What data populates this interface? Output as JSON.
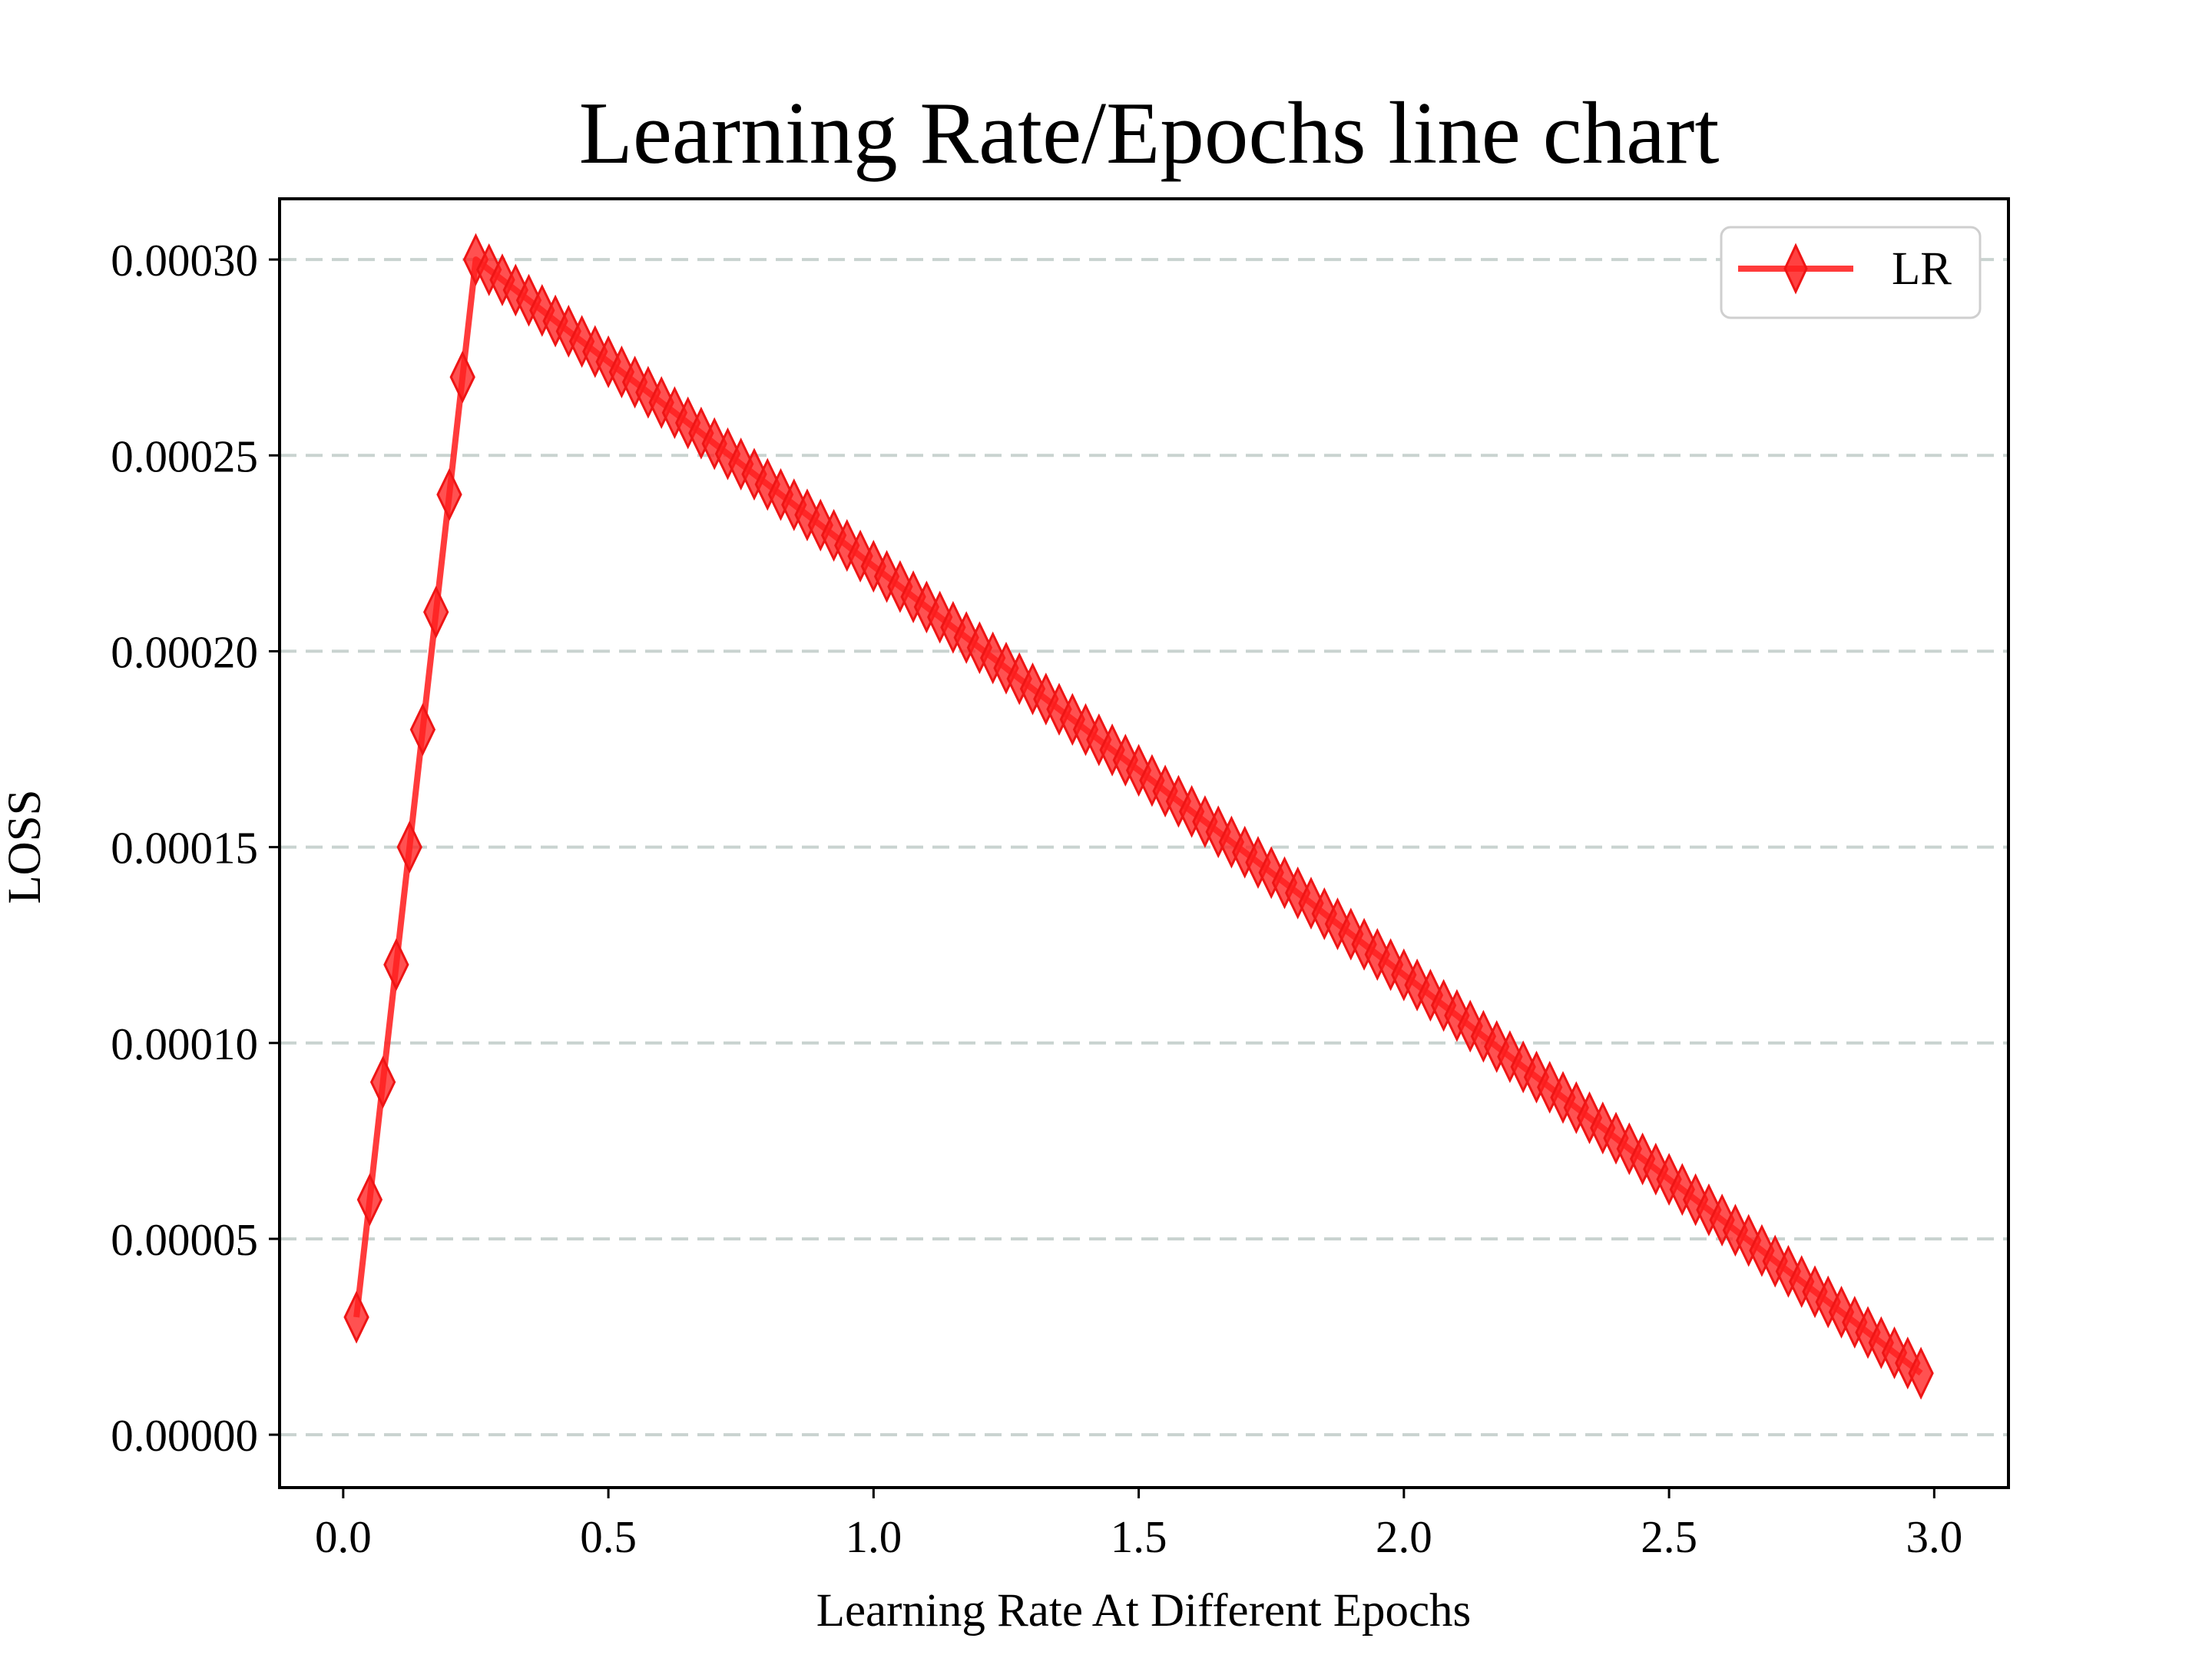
{
  "chart_data": {
    "type": "line",
    "title": "Learning Rate/Epochs line chart",
    "xlabel": "Learning Rate At Different Epochs",
    "ylabel": "LOSS",
    "xlim": [
      -0.12,
      3.14
    ],
    "ylim": [
      -1.35e-05,
      0.0003155
    ],
    "x_ticks": [
      0.0,
      0.5,
      1.0,
      1.5,
      2.0,
      2.5,
      3.0
    ],
    "x_tick_labels": [
      "0.0",
      "0.5",
      "1.0",
      "1.5",
      "2.0",
      "2.5",
      "3.0"
    ],
    "y_ticks": [
      0.0,
      5e-05,
      0.0001,
      0.00015,
      0.0002,
      0.00025,
      0.0003
    ],
    "y_tick_labels": [
      "0.00000",
      "0.00005",
      "0.00010",
      "0.00015",
      "0.00020",
      "0.00025",
      "0.00030"
    ],
    "grid": "horizontal dashed",
    "legend_position": "top-right",
    "colors": {
      "line": "#ff2020",
      "grid": "#c9d3d0",
      "axis": "#000000"
    },
    "series": [
      {
        "name": "LR",
        "marker": "thin-diamond",
        "x": [
          0.025,
          0.05,
          0.075,
          0.1,
          0.125,
          0.15,
          0.175,
          0.2,
          0.225,
          0.25,
          0.275,
          0.3,
          0.325,
          0.35,
          0.375,
          0.4,
          0.425,
          0.45,
          0.475,
          0.5,
          0.525,
          0.55,
          0.575,
          0.6,
          0.625,
          0.65,
          0.675,
          0.7,
          0.725,
          0.75,
          0.775,
          0.8,
          0.825,
          0.85,
          0.875,
          0.9,
          0.925,
          0.95,
          0.975,
          1.0,
          1.025,
          1.05,
          1.075,
          1.1,
          1.125,
          1.15,
          1.175,
          1.2,
          1.225,
          1.25,
          1.275,
          1.3,
          1.325,
          1.35,
          1.375,
          1.4,
          1.425,
          1.45,
          1.475,
          1.5,
          1.525,
          1.55,
          1.575,
          1.6,
          1.625,
          1.65,
          1.675,
          1.7,
          1.725,
          1.75,
          1.775,
          1.8,
          1.825,
          1.85,
          1.875,
          1.9,
          1.925,
          1.95,
          1.975,
          2.0,
          2.025,
          2.05,
          2.075,
          2.1,
          2.125,
          2.15,
          2.175,
          2.2,
          2.225,
          2.25,
          2.275,
          2.3,
          2.325,
          2.35,
          2.375,
          2.4,
          2.425,
          2.45,
          2.475,
          2.5,
          2.525,
          2.55,
          2.575,
          2.6,
          2.625,
          2.65,
          2.675,
          2.7,
          2.725,
          2.75,
          2.775,
          2.8,
          2.825,
          2.85,
          2.875,
          2.9,
          2.925,
          2.95,
          2.975
        ],
        "y": [
          3e-05,
          6e-05,
          9e-05,
          0.00012,
          0.00015,
          0.00018,
          0.00021,
          0.00024,
          0.00027,
          0.0003,
          0.0002974,
          0.0002948,
          0.0002922,
          0.0002896,
          0.000287,
          0.0002843,
          0.0002817,
          0.0002791,
          0.0002765,
          0.0002739,
          0.0002713,
          0.0002687,
          0.0002661,
          0.0002635,
          0.0002609,
          0.0002583,
          0.0002557,
          0.000253,
          0.0002504,
          0.0002478,
          0.0002452,
          0.0002426,
          0.00024,
          0.0002374,
          0.0002348,
          0.0002322,
          0.0002296,
          0.000227,
          0.0002243,
          0.0002217,
          0.0002191,
          0.0002165,
          0.0002139,
          0.0002113,
          0.0002087,
          0.0002061,
          0.0002035,
          0.0002009,
          0.0001983,
          0.0001957,
          0.000193,
          0.0001904,
          0.0001878,
          0.0001852,
          0.0001826,
          0.00018,
          0.0001774,
          0.0001748,
          0.0001722,
          0.0001696,
          0.000167,
          0.0001643,
          0.0001617,
          0.0001591,
          0.0001565,
          0.0001539,
          0.0001513,
          0.0001487,
          0.0001461,
          0.0001435,
          0.0001409,
          0.0001383,
          0.0001357,
          0.000133,
          0.0001304,
          0.0001278,
          0.0001252,
          0.0001226,
          0.00012,
          0.0001174,
          0.0001148,
          0.0001122,
          0.0001096,
          0.000107,
          0.0001043,
          0.0001017,
          9.91e-05,
          9.65e-05,
          9.39e-05,
          9.13e-05,
          8.87e-05,
          8.61e-05,
          8.35e-05,
          8.09e-05,
          7.83e-05,
          7.57e-05,
          7.3e-05,
          7.04e-05,
          6.78e-05,
          6.52e-05,
          6.26e-05,
          6e-05,
          5.74e-05,
          5.48e-05,
          5.22e-05,
          4.96e-05,
          4.7e-05,
          4.43e-05,
          4.17e-05,
          3.91e-05,
          3.65e-05,
          3.39e-05,
          3.13e-05,
          2.87e-05,
          2.61e-05,
          2.35e-05,
          2.09e-05,
          1.83e-05,
          1.57e-05
        ]
      }
    ]
  }
}
